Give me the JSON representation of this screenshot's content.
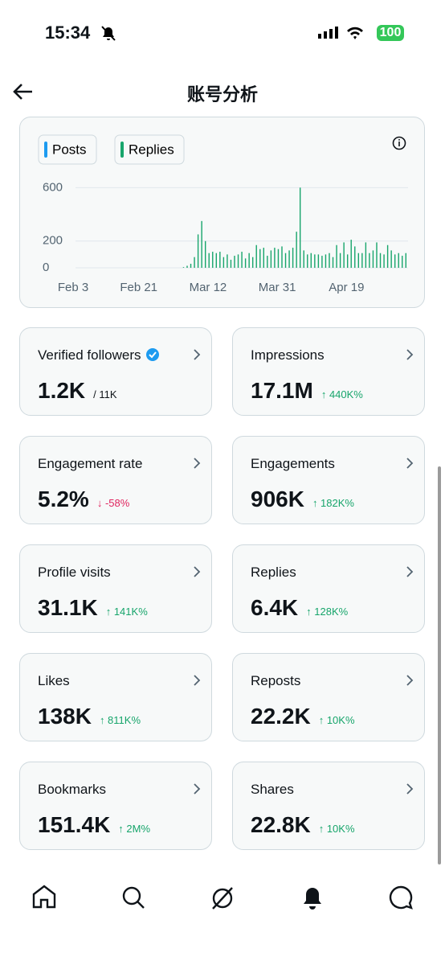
{
  "status_bar": {
    "time": "15:34",
    "battery": "100"
  },
  "header": {
    "title": "账号分析"
  },
  "chart": {
    "type": "bar",
    "x": [
      30,
      31,
      32,
      33,
      34,
      35,
      36,
      37,
      38,
      39,
      40,
      41,
      42,
      43,
      44,
      45,
      46,
      47,
      48,
      49,
      50,
      51,
      52,
      53,
      54,
      55,
      56,
      57,
      58,
      59,
      60,
      61,
      62,
      63,
      64,
      65,
      66,
      67,
      68,
      69,
      70,
      71,
      72,
      73,
      74,
      75,
      76,
      77,
      78,
      79,
      80,
      81,
      82,
      83,
      84,
      85,
      86,
      87,
      88,
      89,
      90,
      91
    ],
    "series": [
      {
        "name": "Posts",
        "color": "#1d9bf0",
        "values": [
          0,
          0,
          0,
          0,
          0,
          0,
          0,
          0,
          0,
          0,
          0,
          0,
          0,
          0,
          0,
          0,
          0,
          0,
          0,
          0,
          0,
          0,
          0,
          0,
          0,
          0,
          0,
          0,
          0,
          0,
          0,
          0,
          0,
          0,
          0,
          0,
          0,
          0,
          0,
          0,
          0,
          0,
          0,
          0,
          0,
          0,
          0,
          0,
          0,
          0,
          0,
          0,
          0,
          0,
          0,
          0,
          0,
          0,
          0,
          0,
          0,
          0
        ]
      },
      {
        "name": "Replies",
        "color": "#17a56b",
        "values": [
          5,
          15,
          30,
          80,
          250,
          350,
          200,
          110,
          120,
          110,
          120,
          80,
          100,
          60,
          90,
          100,
          120,
          70,
          110,
          80,
          170,
          140,
          150,
          90,
          130,
          150,
          140,
          160,
          110,
          130,
          150,
          270,
          600,
          130,
          100,
          110,
          100,
          100,
          90,
          100,
          110,
          80,
          170,
          110,
          190,
          100,
          210,
          160,
          110,
          110,
          190,
          110,
          130,
          190,
          110,
          100,
          170,
          130,
          100,
          110,
          90,
          110
        ]
      }
    ],
    "xlim": [
      0,
      91
    ],
    "xticks": [
      {
        "value": 0,
        "label": "Feb 3"
      },
      {
        "value": 18,
        "label": "Feb 21"
      },
      {
        "value": 37,
        "label": "Mar 12"
      },
      {
        "value": 56,
        "label": "Mar 31"
      },
      {
        "value": 75,
        "label": "Apr 19"
      }
    ],
    "ylim": [
      0,
      620
    ],
    "yticks": [
      0,
      200,
      600
    ],
    "grid": true
  },
  "cards": [
    {
      "label": "Verified followers",
      "value": "1.2K",
      "note": "/ 11K"
    },
    {
      "label": "Impressions",
      "value": "17.1M",
      "change": "↑ 440K%",
      "direction": "up"
    },
    {
      "label": "Engagement rate",
      "value": "5.2%",
      "change": "↓ -58%",
      "direction": "down"
    },
    {
      "label": "Engagements",
      "value": "906K",
      "change": "↑ 182K%",
      "direction": "up"
    },
    {
      "label": "Profile visits",
      "value": "31.1K",
      "change": "↑ 141K%",
      "direction": "up"
    },
    {
      "label": "Replies",
      "value": "6.4K",
      "change": "↑ 128K%",
      "direction": "up"
    },
    {
      "label": "Likes",
      "value": "138K",
      "change": "↑ 811K%",
      "direction": "up"
    },
    {
      "label": "Reposts",
      "value": "22.2K",
      "change": "↑ 10K%",
      "direction": "up"
    },
    {
      "label": "Bookmarks",
      "value": "151.4K",
      "change": "↑ 2M%",
      "direction": "up"
    },
    {
      "label": "Shares",
      "value": "22.8K",
      "change": "↑ 10K%",
      "direction": "up"
    }
  ]
}
